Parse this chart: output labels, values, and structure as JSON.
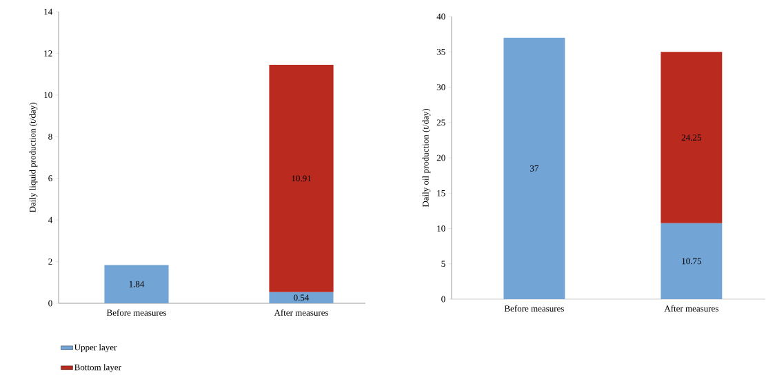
{
  "chart_data": [
    {
      "type": "bar",
      "stacked": true,
      "ylabel": "Daily liquid production (t/day)",
      "categories": [
        "Before measures",
        "After measures"
      ],
      "series": [
        {
          "name": "Upper layer",
          "color": "#72a5d6",
          "values": [
            1.84,
            0.54
          ]
        },
        {
          "name": "Bottom layer",
          "color": "#bb2a1f",
          "values": [
            null,
            10.91
          ]
        }
      ],
      "ylim": [
        0,
        14
      ],
      "yticks": [
        0,
        2,
        4,
        6,
        8,
        10,
        12,
        14
      ],
      "grid": false,
      "legend": "bottom",
      "data_labels": true
    },
    {
      "type": "bar",
      "stacked": true,
      "ylabel": "Daily oil production (t/day)",
      "categories": [
        "Before measures",
        "After measures"
      ],
      "series": [
        {
          "color": "#72a5d6",
          "values": [
            37,
            10.75
          ]
        },
        {
          "color": "#bb2a1f",
          "values": [
            null,
            24.25
          ]
        }
      ],
      "ylim": [
        0,
        40
      ],
      "yticks": [
        0,
        5,
        10,
        15,
        20,
        25,
        30,
        35,
        40
      ],
      "grid": false,
      "data_labels": true
    }
  ]
}
